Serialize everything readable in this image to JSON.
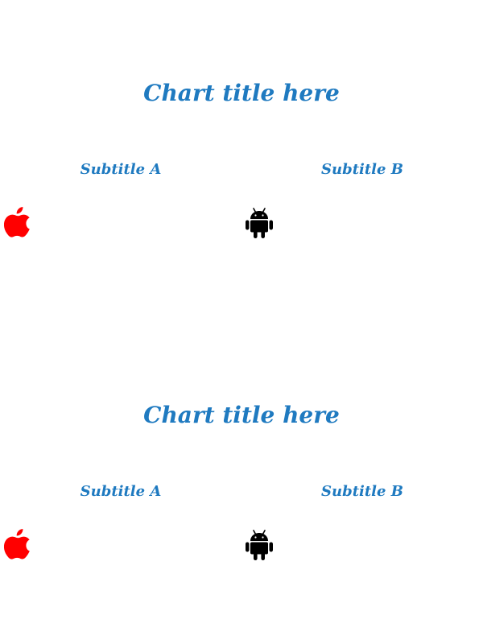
{
  "colors": {
    "title": "#1f7ac0",
    "apple_icon": "#ff0000",
    "android_icon": "#000000",
    "background": "#ffffff"
  },
  "panels": [
    {
      "title": "Chart title here",
      "subtitle_a": "Subtitle A",
      "subtitle_b": "Subtitle B",
      "icon_a": "apple-icon",
      "icon_b": "android-icon"
    },
    {
      "title": "Chart title here",
      "subtitle_a": "Subtitle A",
      "subtitle_b": "Subtitle B",
      "icon_a": "apple-icon",
      "icon_b": "android-icon"
    }
  ]
}
